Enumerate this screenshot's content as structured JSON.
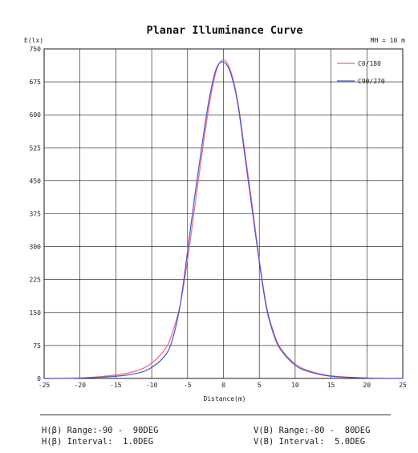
{
  "chart_data": {
    "type": "line",
    "title": "Planar Illuminance Curve",
    "ylabel": "E(lx)",
    "xlabel": "Distance(m)",
    "top_right_note": "MH = 10 m",
    "xlim": [
      -25,
      25
    ],
    "ylim": [
      0,
      750
    ],
    "x_ticks": [
      -25,
      -20,
      -15,
      -10,
      -5,
      0,
      5,
      10,
      15,
      20,
      25
    ],
    "y_ticks": [
      0,
      75,
      150,
      225,
      300,
      375,
      450,
      525,
      600,
      675,
      750
    ],
    "grid": true,
    "legend_position": "top-right",
    "colors": {
      "c0_180": "#ee6677",
      "c90_270": "#4455dd",
      "axis": "#222222",
      "grid": "#111111"
    },
    "series": [
      {
        "name": "C0/180",
        "color": "#ee6677",
        "x": [
          -25,
          -20,
          -15,
          -12,
          -10,
          -8,
          -7,
          -6,
          -5,
          -4,
          -3,
          -2,
          -1,
          0,
          1,
          2,
          3,
          4,
          5,
          6,
          7,
          8,
          10,
          12,
          15,
          20,
          25
        ],
        "y": [
          0,
          1,
          8,
          18,
          35,
          70,
          110,
          170,
          270,
          390,
          510,
          620,
          700,
          725,
          700,
          630,
          515,
          395,
          270,
          165,
          105,
          68,
          33,
          17,
          6,
          1,
          0
        ]
      },
      {
        "name": "C90/270",
        "color": "#4455dd",
        "x": [
          -25,
          -20,
          -15,
          -12,
          -10,
          -8,
          -7,
          -6,
          -5,
          -4,
          -3,
          -2,
          -1,
          0,
          1,
          2,
          3,
          4,
          5,
          6,
          7,
          8,
          10,
          12,
          15,
          20,
          25
        ],
        "y": [
          0,
          1,
          5,
          12,
          25,
          55,
          95,
          170,
          290,
          415,
          530,
          635,
          705,
          720,
          695,
          625,
          505,
          385,
          265,
          160,
          100,
          65,
          30,
          15,
          5,
          1,
          0
        ]
      }
    ]
  },
  "footer": {
    "h_range": "H(β) Range:-90 -  90DEG",
    "h_interval": "H(β) Interval:  1.0DEG",
    "v_range": "V(B) Range:-80 -  80DEG",
    "v_interval": "V(B) Interval:  5.0DEG"
  }
}
